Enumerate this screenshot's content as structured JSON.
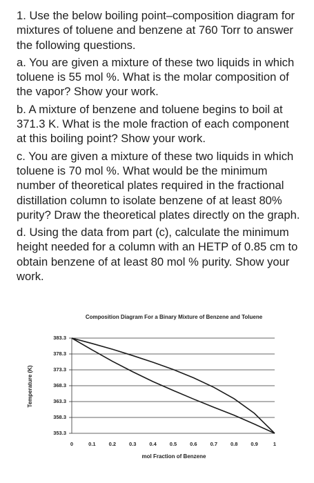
{
  "questions": [
    "1. Use the below boiling point–composition diagram for mixtures of toluene and benzene at 760 Torr to answer the following questions.",
    "a. You are given a mixture of these two liquids in which toluene is 55 mol %. What is the molar composition of the vapor? Show your work.",
    "b. A mixture of benzene and toluene begins to boil at 371.3 K. What is the mole fraction of each component at this boiling point? Show your work.",
    "c. You are given a mixture of these two liquids in which toluene is 70 mol %. What would be the minimum number of theoretical plates required in the fractional distillation column to isolate benzene of at least 80% purity? Draw the theoretical plates directly on the graph.",
    "d. Using the data from part (c), calculate the minimum height needed for a column with an HETP of 0.85 cm to obtain benzene of at least 80 mol % purity. Show your work."
  ],
  "chart_data": {
    "type": "line",
    "title": "Composition Diagram For a Binary Mixture of Benzene and Toluene",
    "x_label": "mol Fraction of Benzene",
    "y_label": "Temperature (K)",
    "x": [
      0,
      0.1,
      0.2,
      0.3,
      0.4,
      0.5,
      0.6,
      0.7,
      0.8,
      0.9,
      1
    ],
    "series": [
      {
        "color": "#1a1a1a",
        "values": [
          383.3,
          379.6,
          376.0,
          372.7,
          369.6,
          366.8,
          364.1,
          361.5,
          359.0,
          356.2,
          353.3
        ]
      },
      {
        "color": "#1a1a1a",
        "values": [
          383.3,
          381.6,
          379.8,
          377.8,
          375.7,
          373.4,
          370.8,
          367.8,
          364.2,
          359.6,
          353.3
        ]
      }
    ],
    "xlim": [
      0,
      1
    ],
    "xticks": [
      0,
      0.1,
      0.2,
      0.3,
      0.4,
      0.5,
      0.6,
      0.7,
      0.8,
      0.9,
      1
    ],
    "ylim": [
      353.3,
      383.3
    ],
    "yticks": [
      353.3,
      358.3,
      363.3,
      368.3,
      373.3,
      378.3,
      383.3
    ],
    "grid": true
  }
}
